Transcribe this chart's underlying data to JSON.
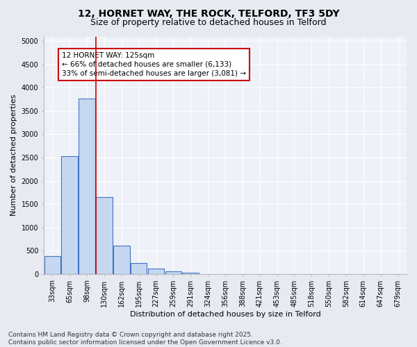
{
  "title_line1": "12, HORNET WAY, THE ROCK, TELFORD, TF3 5DY",
  "title_line2": "Size of property relative to detached houses in Telford",
  "categories": [
    "33sqm",
    "65sqm",
    "98sqm",
    "130sqm",
    "162sqm",
    "195sqm",
    "227sqm",
    "259sqm",
    "291sqm",
    "324sqm",
    "356sqm",
    "388sqm",
    "421sqm",
    "453sqm",
    "485sqm",
    "518sqm",
    "550sqm",
    "582sqm",
    "614sqm",
    "647sqm",
    "679sqm"
  ],
  "values": [
    380,
    2530,
    3760,
    1650,
    610,
    235,
    110,
    60,
    30,
    0,
    0,
    0,
    0,
    0,
    0,
    0,
    0,
    0,
    0,
    0,
    0
  ],
  "bar_color": "#c5d8f0",
  "bar_edge_color": "#4472c4",
  "vline_color": "#cc0000",
  "vline_x": 2.5,
  "annotation_text_line1": "12 HORNET WAY: 125sqm",
  "annotation_text_line2": "← 66% of detached houses are smaller (6,133)",
  "annotation_text_line3": "33% of semi-detached houses are larger (3,081) →",
  "xlabel": "Distribution of detached houses by size in Telford",
  "ylabel": "Number of detached properties",
  "ylim": [
    0,
    5100
  ],
  "yticks": [
    0,
    500,
    1000,
    1500,
    2000,
    2500,
    3000,
    3500,
    4000,
    4500,
    5000
  ],
  "footer_line1": "Contains HM Land Registry data © Crown copyright and database right 2025.",
  "footer_line2": "Contains public sector information licensed under the Open Government Licence v3.0.",
  "bg_color": "#e8eaf2",
  "plot_bg_color": "#eef1f8",
  "grid_color": "#ffffff",
  "title_fontsize": 10,
  "subtitle_fontsize": 9,
  "axis_label_fontsize": 8,
  "tick_fontsize": 7,
  "annotation_fontsize": 7.5,
  "footer_fontsize": 6.5
}
